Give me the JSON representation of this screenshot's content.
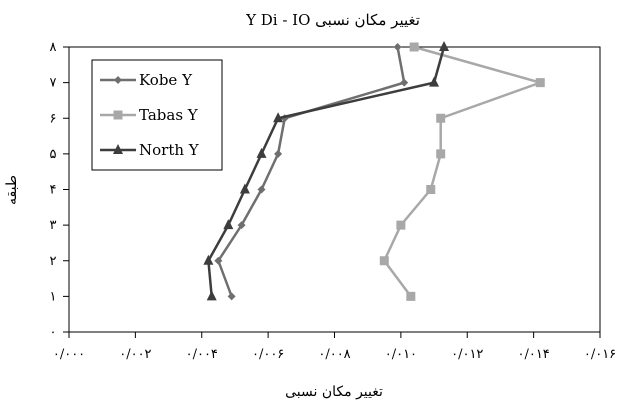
{
  "chart_data": {
    "type": "line",
    "title": "تغییر مکان نسبی Y Di - IO",
    "xlabel": "تغییر مکان نسبی",
    "ylabel": "طبقه",
    "xlim": [
      0,
      0.016
    ],
    "ylim": [
      0,
      8
    ],
    "x_tick_labels": [
      "۰/۰۰۰",
      "۰/۰۰۲",
      "۰/۰۰۴",
      "۰/۰۰۶",
      "۰/۰۰۸",
      "۰/۰۱۰",
      "۰/۰۱۲",
      "۰/۰۱۴",
      "۰/۰۱۶"
    ],
    "y_tick_labels": [
      "۰",
      "۱",
      "۲",
      "۳",
      "۴",
      "۵",
      "۶",
      "۷",
      "۸"
    ],
    "grid": false,
    "legend_position": "top-left",
    "series": [
      {
        "name": "Kobe Y",
        "color": "#6f6f6f",
        "marker": "diamond",
        "points": [
          [
            0.0049,
            1
          ],
          [
            0.0045,
            2
          ],
          [
            0.0052,
            3
          ],
          [
            0.0058,
            4
          ],
          [
            0.0063,
            5
          ],
          [
            0.0065,
            6
          ],
          [
            0.0101,
            7
          ],
          [
            0.0099,
            8
          ]
        ]
      },
      {
        "name": "Tabas Y",
        "color": "#a8a8a8",
        "marker": "square",
        "points": [
          [
            0.0103,
            1
          ],
          [
            0.0095,
            2
          ],
          [
            0.01,
            3
          ],
          [
            0.0109,
            4
          ],
          [
            0.0112,
            5
          ],
          [
            0.0112,
            6
          ],
          [
            0.0142,
            7
          ],
          [
            0.0104,
            8
          ]
        ]
      },
      {
        "name": "North Y",
        "color": "#3d3d3d",
        "marker": "triangle",
        "points": [
          [
            0.0043,
            1
          ],
          [
            0.0042,
            2
          ],
          [
            0.0048,
            3
          ],
          [
            0.0053,
            4
          ],
          [
            0.0058,
            5
          ],
          [
            0.0063,
            6
          ],
          [
            0.011,
            7
          ],
          [
            0.0113,
            8
          ]
        ]
      }
    ]
  }
}
